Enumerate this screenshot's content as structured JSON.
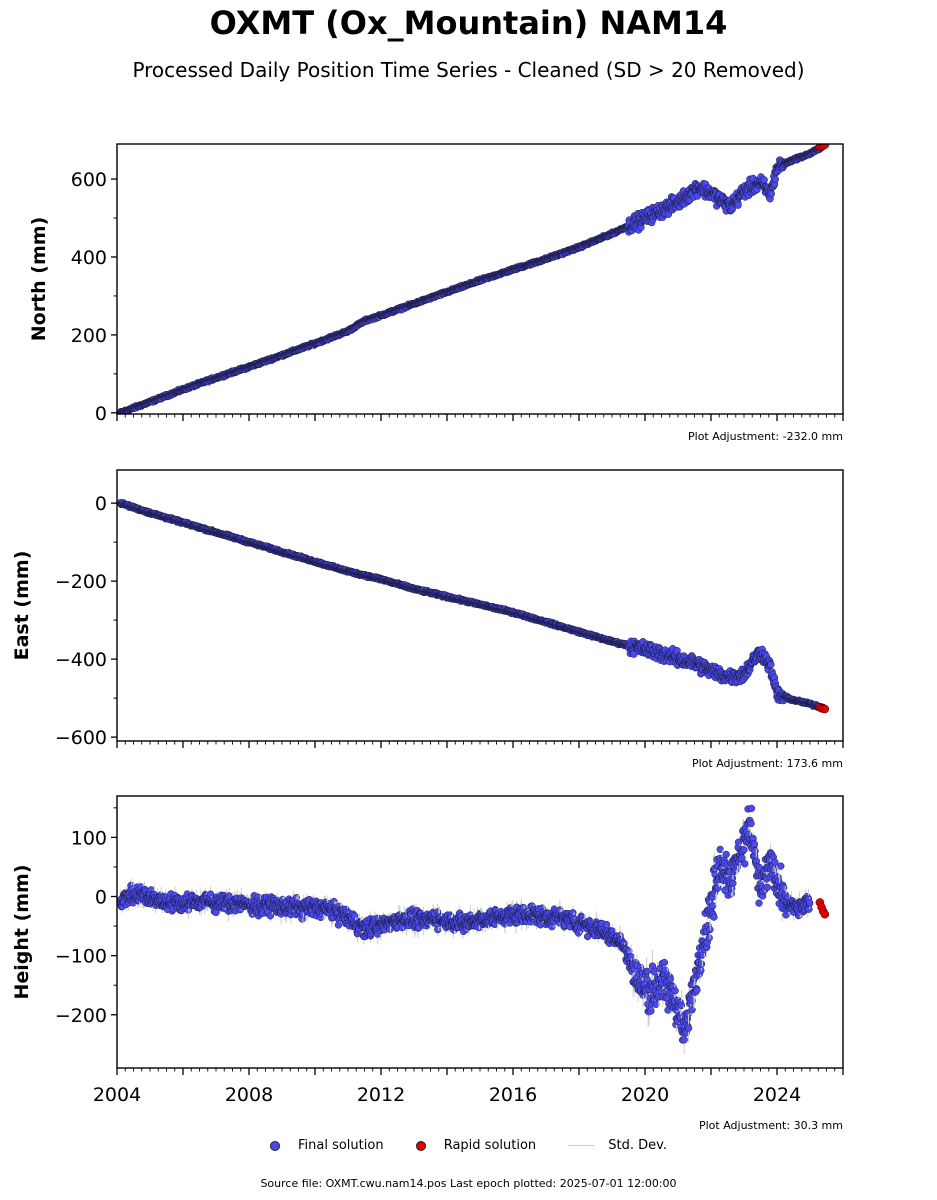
{
  "title": "OXMT (Ox_Mountain) NAM14",
  "subtitle": "Processed Daily Position Time Series - Cleaned (SD > 20 Removed)",
  "colors": {
    "final": "#4a4aee",
    "rapid": "#e00000",
    "std": "#cccccc",
    "edge": "#1a1a3a"
  },
  "legend": {
    "final": "Final solution",
    "rapid": "Rapid solution",
    "std": "Std. Dev."
  },
  "footer": "Source file: OXMT.cwu.nam14.pos  Last epoch plotted: 2025-07-01 12:00:00",
  "chart_data": [
    {
      "type": "scatter",
      "ylabel": "North (mm)",
      "adjustment": "Plot Adjustment: -232.0 mm",
      "xlim": [
        2004.0,
        2026.0
      ],
      "ylim": [
        -3,
        690
      ],
      "yticks": [
        0,
        200,
        400,
        600
      ],
      "ytick_labels": [
        "0",
        "200",
        "400",
        "600"
      ],
      "x_tick_labels_shown": false,
      "series": [
        {
          "name": "Final solution",
          "x": [
            2004.1,
            2005.0,
            2006.0,
            2007.0,
            2008.0,
            2009.0,
            2010.0,
            2011.0,
            2011.5,
            2012.0,
            2013.0,
            2014.0,
            2015.0,
            2016.0,
            2017.0,
            2018.0,
            2019.0,
            2019.5,
            2020.0,
            2020.5,
            2021.0,
            2021.3,
            2021.6,
            2022.0,
            2022.3,
            2022.6,
            2023.0,
            2023.5,
            2023.8,
            2024.0,
            2024.5,
            2025.0,
            2025.4
          ],
          "y": [
            0,
            28,
            60,
            90,
            118,
            148,
            178,
            210,
            236,
            250,
            280,
            310,
            340,
            368,
            395,
            425,
            460,
            480,
            500,
            520,
            540,
            560,
            580,
            565,
            545,
            530,
            570,
            590,
            560,
            630,
            650,
            665,
            685
          ]
        },
        {
          "name": "Rapid solution",
          "x": [
            2025.3,
            2025.35,
            2025.4,
            2025.45
          ],
          "y": [
            683,
            685,
            686,
            688
          ]
        }
      ]
    },
    {
      "type": "scatter",
      "ylabel": "East (mm)",
      "adjustment": "Plot Adjustment: 173.6 mm",
      "xlim": [
        2004.0,
        2026.0
      ],
      "ylim": [
        -610,
        85
      ],
      "yticks": [
        -600,
        -400,
        -200,
        0
      ],
      "ytick_labels": [
        "−600",
        "−400",
        "−200",
        "0"
      ],
      "x_tick_labels_shown": false,
      "series": [
        {
          "name": "Final solution",
          "x": [
            2004.1,
            2005.0,
            2006.0,
            2007.0,
            2008.0,
            2009.0,
            2010.0,
            2011.0,
            2012.0,
            2013.0,
            2014.0,
            2015.0,
            2016.0,
            2017.0,
            2018.0,
            2019.0,
            2019.5,
            2020.0,
            2020.5,
            2021.0,
            2021.5,
            2022.0,
            2022.5,
            2023.0,
            2023.3,
            2023.5,
            2023.8,
            2024.0,
            2024.5,
            2025.0,
            2025.4
          ],
          "y": [
            0,
            -25,
            -50,
            -75,
            -100,
            -125,
            -150,
            -175,
            -195,
            -220,
            -240,
            -260,
            -280,
            -305,
            -330,
            -355,
            -365,
            -375,
            -385,
            -400,
            -410,
            -430,
            -445,
            -440,
            -400,
            -380,
            -420,
            -490,
            -505,
            -515,
            -525
          ]
        },
        {
          "name": "Rapid solution",
          "x": [
            2025.3,
            2025.35,
            2025.4,
            2025.45
          ],
          "y": [
            -524,
            -526,
            -527,
            -528
          ]
        }
      ]
    },
    {
      "type": "scatter",
      "ylabel": "Height (mm)",
      "adjustment": "Plot Adjustment: 30.3 mm",
      "xlim": [
        2004.0,
        2026.0
      ],
      "ylim": [
        -290,
        170
      ],
      "yticks": [
        -200,
        -100,
        0,
        100
      ],
      "ytick_labels": [
        "−200",
        "−100",
        "0",
        "100"
      ],
      "x_ticks": [
        2004,
        2008,
        2012,
        2016,
        2020,
        2024
      ],
      "x_tick_labels": [
        "2004",
        "2008",
        "2012",
        "2016",
        "2020",
        "2024"
      ],
      "series": [
        {
          "name": "Final solution",
          "x": [
            2004.1,
            2004.7,
            2005.5,
            2006.5,
            2007.5,
            2008.5,
            2009.5,
            2010.3,
            2011.0,
            2011.5,
            2012.5,
            2013.5,
            2014.5,
            2015.5,
            2016.5,
            2017.3,
            2017.8,
            2018.3,
            2018.8,
            2019.3,
            2019.6,
            2019.9,
            2020.2,
            2020.5,
            2020.8,
            2021.0,
            2021.2,
            2021.4,
            2021.7,
            2022.0,
            2022.3,
            2022.6,
            2022.9,
            2023.2,
            2023.5,
            2023.8,
            2024.2,
            2024.6,
            2025.0
          ],
          "y": [
            -5,
            5,
            -10,
            -8,
            -12,
            -15,
            -18,
            -20,
            -35,
            -55,
            -40,
            -38,
            -45,
            -35,
            -30,
            -35,
            -40,
            -50,
            -60,
            -75,
            -120,
            -150,
            -160,
            -140,
            -170,
            -190,
            -230,
            -170,
            -90,
            -20,
            60,
            30,
            80,
            120,
            10,
            60,
            -10,
            -20,
            -15
          ]
        },
        {
          "name": "Rapid solution",
          "x": [
            2025.3,
            2025.35,
            2025.4,
            2025.45
          ],
          "y": [
            -10,
            -18,
            -25,
            -30
          ]
        }
      ]
    }
  ]
}
